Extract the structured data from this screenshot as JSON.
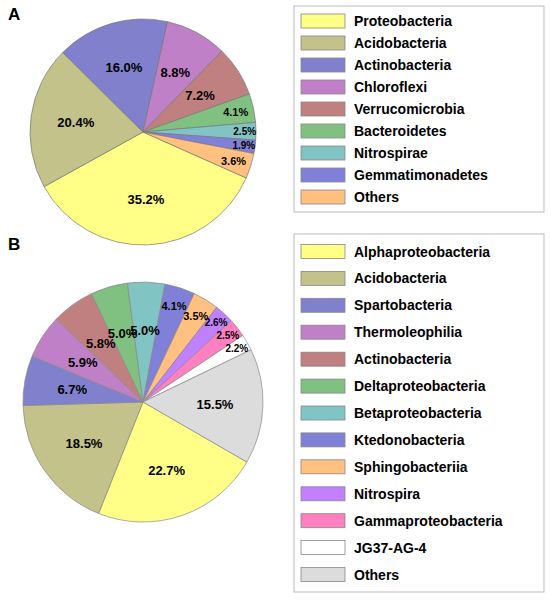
{
  "chart_data": [
    {
      "type": "pie",
      "title": "A",
      "categories": [
        "Proteobacteria",
        "Acidobacteria",
        "Actinobacteria",
        "Chloroflexi",
        "Verrucomicrobia",
        "Bacteroidetes",
        "Nitrospirae",
        "Gemmatimonadetes",
        "Others"
      ],
      "values": [
        35.2,
        20.4,
        16.0,
        8.8,
        7.2,
        4.1,
        2.5,
        1.9,
        3.6
      ],
      "value_labels": [
        "35.2%",
        "20.4%",
        "16.0%",
        "8.8%",
        "7.2%",
        "4.1%",
        "2.5%",
        "1.9%",
        "3.6%"
      ],
      "colors": [
        "#ffff88",
        "#c2c28a",
        "#8080cc",
        "#c080c8",
        "#c08080",
        "#80c080",
        "#80c4c4",
        "#8080d8",
        "#ffc080"
      ],
      "data_labels": true,
      "legend": "right"
    },
    {
      "type": "pie",
      "title": "B",
      "categories": [
        "Alphaproteobacteria",
        "Acidobacteria",
        "Spartobacteria",
        "Thermoleophilia",
        "Actinobacteria",
        "Deltaproteobacteria",
        "Betaproteobacteria",
        "Ktedonobacteria",
        "Sphingobacteriia",
        "Nitrospira",
        "Gammaproteobacteria",
        "JG37-AG-4",
        "Others"
      ],
      "values": [
        22.7,
        18.5,
        6.7,
        5.9,
        5.8,
        5.0,
        5.0,
        4.1,
        3.5,
        2.6,
        2.5,
        2.2,
        15.5
      ],
      "value_labels": [
        "22.7%",
        "18.5%",
        "6.7%",
        "5.9%",
        "5.8%",
        "5.0%",
        "5.0%",
        "4.1%",
        "3.5%",
        "2.6%",
        "2.5%",
        "2.2%",
        "15.5%"
      ],
      "colors": [
        "#ffff88",
        "#c2c28a",
        "#8080cc",
        "#c080c8",
        "#c08080",
        "#80c080",
        "#80c4c4",
        "#8080d8",
        "#ffc080",
        "#c080ff",
        "#ff80c0",
        "#ffffff",
        "#dcdcdc"
      ],
      "data_labels": true,
      "legend": "right"
    }
  ]
}
